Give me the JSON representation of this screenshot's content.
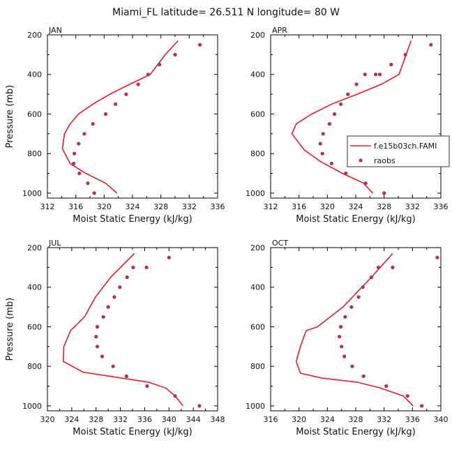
{
  "figure": {
    "title": "Miami_FL  latitude= 26.511 N longitude= 80 W"
  },
  "legend": {
    "placement": "right of APR panel",
    "model_label": "f.e15b03ch.FAMI",
    "obs_label": "raobs"
  },
  "colors": {
    "model_line": "#e0202a",
    "obs_marker": "#b03060",
    "axes": "#000000"
  },
  "chart_data": [
    {
      "type": "line",
      "panel": "JAN",
      "title": "JAN",
      "xlabel": "Moist Static Energy (kJ/kg)",
      "ylabel": "Pressure (mb)",
      "xlim": [
        312,
        336
      ],
      "xticks": [
        312,
        316,
        320,
        324,
        328,
        332,
        336
      ],
      "ylim": [
        1025,
        200
      ],
      "yticks": [
        200,
        400,
        600,
        800,
        1000
      ],
      "series": [
        {
          "name": "f.e15b03ch.FAMI",
          "style": "line",
          "x": [
            321.8,
            320.2,
            317.4,
            315.2,
            314.1,
            314.4,
            315.2,
            316.4,
            318.4,
            320.8,
            323.6,
            326.5,
            328.6,
            330.4
          ],
          "y": [
            1000,
            950,
            900,
            850,
            775,
            700,
            650,
            600,
            550,
            500,
            450,
            400,
            300,
            230
          ]
        },
        {
          "name": "raobs",
          "style": "markers",
          "x": [
            318.6,
            317.7,
            316.5,
            315.7,
            315.8,
            316.4,
            317.2,
            318.4,
            320.2,
            321.6,
            323.1,
            324.8,
            326.2,
            327.8,
            330.0,
            333.5
          ],
          "y": [
            1000,
            950,
            900,
            850,
            800,
            750,
            700,
            650,
            600,
            550,
            500,
            450,
            400,
            350,
            300,
            250
          ]
        }
      ]
    },
    {
      "type": "line",
      "panel": "APR",
      "title": "APR",
      "xlabel": "Moist Static Energy (kJ/kg)",
      "ylabel": "",
      "xlim": [
        312,
        336
      ],
      "xticks": [
        312,
        316,
        320,
        324,
        328,
        332,
        336
      ],
      "ylim": [
        1025,
        200
      ],
      "yticks": [
        200,
        400,
        600,
        800,
        1000
      ],
      "series": [
        {
          "name": "f.e15b03ch.FAMI",
          "style": "line",
          "x": [
            326.4,
            325.1,
            322.1,
            319.0,
            316.7,
            315.0,
            315.6,
            317.8,
            320.6,
            324.2,
            327.6,
            330.1,
            331.8
          ],
          "y": [
            1000,
            950,
            900,
            840,
            780,
            700,
            650,
            600,
            550,
            500,
            450,
            400,
            230
          ]
        },
        {
          "name": "raobs",
          "style": "markers",
          "x": [
            328.0,
            325.4,
            322.6,
            320.6,
            319.3,
            319.0,
            319.4,
            320.3,
            321.0,
            321.9,
            322.9,
            324.1,
            325.3,
            326.8,
            327.4,
            329.0,
            331.0,
            334.6
          ],
          "y": [
            1000,
            950,
            900,
            850,
            800,
            750,
            700,
            650,
            600,
            550,
            500,
            450,
            400,
            400,
            400,
            350,
            300,
            250
          ]
        }
      ]
    },
    {
      "type": "line",
      "panel": "JUL",
      "title": "JUL",
      "xlabel": "Moist Static Energy (kJ/kg)",
      "ylabel": "Pressure (mb)",
      "xlim": [
        320,
        348
      ],
      "xticks": [
        320,
        324,
        328,
        332,
        336,
        340,
        344,
        348
      ],
      "ylim": [
        1025,
        200
      ],
      "yticks": [
        200,
        400,
        600,
        800,
        1000
      ],
      "series": [
        {
          "name": "f.e15b03ch.FAMI",
          "style": "line",
          "x": [
            342.3,
            341.0,
            339.5,
            336.6,
            331.3,
            325.9,
            322.6,
            322.7,
            323.8,
            326.1,
            327.9,
            330.4,
            334.3
          ],
          "y": [
            1000,
            950,
            910,
            880,
            855,
            830,
            775,
            700,
            620,
            550,
            450,
            350,
            230
          ]
        },
        {
          "name": "raobs",
          "style": "markers",
          "x": [
            345.0,
            341.0,
            336.4,
            333.0,
            330.8,
            329.0,
            328.2,
            328.0,
            328.2,
            329.2,
            330.0,
            331.0,
            331.9,
            333.1,
            334.1,
            336.3,
            340.0
          ],
          "y": [
            1000,
            950,
            900,
            850,
            800,
            750,
            700,
            650,
            600,
            550,
            500,
            450,
            400,
            350,
            300,
            300,
            250
          ]
        }
      ]
    },
    {
      "type": "line",
      "panel": "OCT",
      "title": "OCT",
      "xlabel": "Moist Static Energy (kJ/kg)",
      "ylabel": "",
      "xlim": [
        316,
        340
      ],
      "xticks": [
        316,
        320,
        324,
        328,
        332,
        336,
        340
      ],
      "ylim": [
        1025,
        200
      ],
      "yticks": [
        200,
        400,
        600,
        800,
        1000
      ],
      "series": [
        {
          "name": "f.e15b03ch.FAMI",
          "style": "line",
          "x": [
            336.1,
            334.7,
            331.5,
            328.2,
            323.3,
            320.2,
            319.6,
            320.2,
            321.0,
            322.6,
            326.2,
            330.2,
            333.2
          ],
          "y": [
            1000,
            950,
            910,
            880,
            860,
            835,
            775,
            700,
            620,
            600,
            500,
            350,
            230
          ]
        },
        {
          "name": "raobs",
          "style": "markers",
          "x": [
            337.3,
            335.3,
            332.3,
            329.1,
            327.5,
            326.4,
            326.0,
            325.7,
            325.9,
            326.5,
            327.4,
            328.4,
            329.0,
            330.2,
            331.2,
            333.2,
            339.5
          ],
          "y": [
            1000,
            950,
            900,
            850,
            800,
            750,
            700,
            650,
            600,
            550,
            500,
            450,
            400,
            350,
            300,
            300,
            250
          ]
        }
      ]
    }
  ]
}
